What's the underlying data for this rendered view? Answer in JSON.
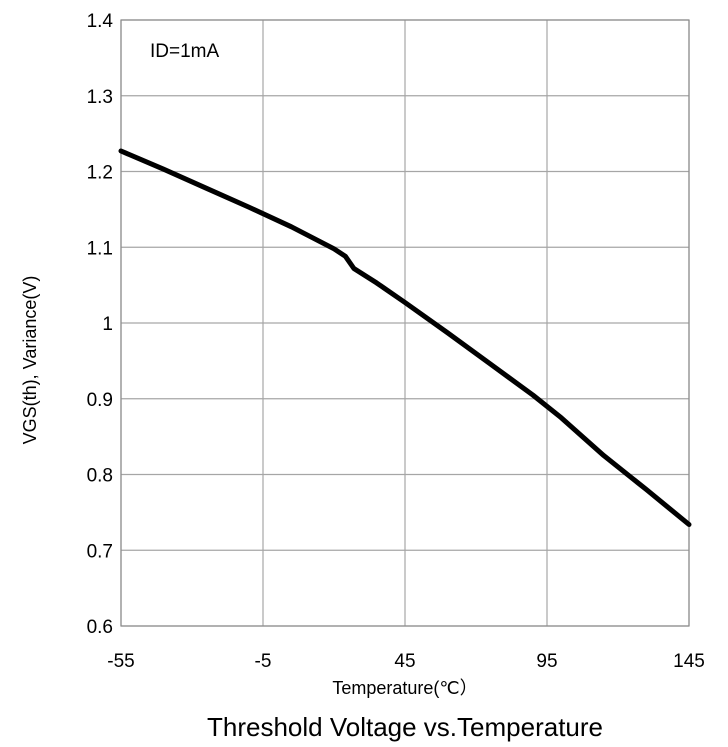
{
  "chart_data": {
    "type": "line",
    "title": "Threshold Voltage vs.Temperature",
    "xlabel": "Temperature(℃）",
    "ylabel": "VGS(th), Variance(V)",
    "annotation": "ID=1mA",
    "xlim": [
      -55,
      145
    ],
    "ylim": [
      0.6,
      1.4
    ],
    "xticks": [
      -55,
      -5,
      45,
      95,
      145
    ],
    "xtick_labels": [
      "-55",
      "-5",
      "45",
      "95",
      "145"
    ],
    "yticks": [
      0.6,
      0.7,
      0.8,
      0.9,
      1.0,
      1.1,
      1.2,
      1.3,
      1.4
    ],
    "ytick_labels": [
      "0.6",
      "0.7",
      "0.8",
      "0.9",
      "1",
      "1.1",
      "1.2",
      "1.3",
      "1.4"
    ],
    "grid": true,
    "series": [
      {
        "color": "#000000",
        "x": [
          -55,
          -40,
          -25,
          -10,
          5,
          20,
          24,
          27,
          35,
          45,
          60,
          75,
          90,
          100,
          115,
          130,
          145
        ],
        "y": [
          1.227,
          1.203,
          1.178,
          1.153,
          1.127,
          1.098,
          1.088,
          1.072,
          1.053,
          1.027,
          0.987,
          0.946,
          0.905,
          0.875,
          0.825,
          0.78,
          0.734
        ]
      }
    ]
  }
}
